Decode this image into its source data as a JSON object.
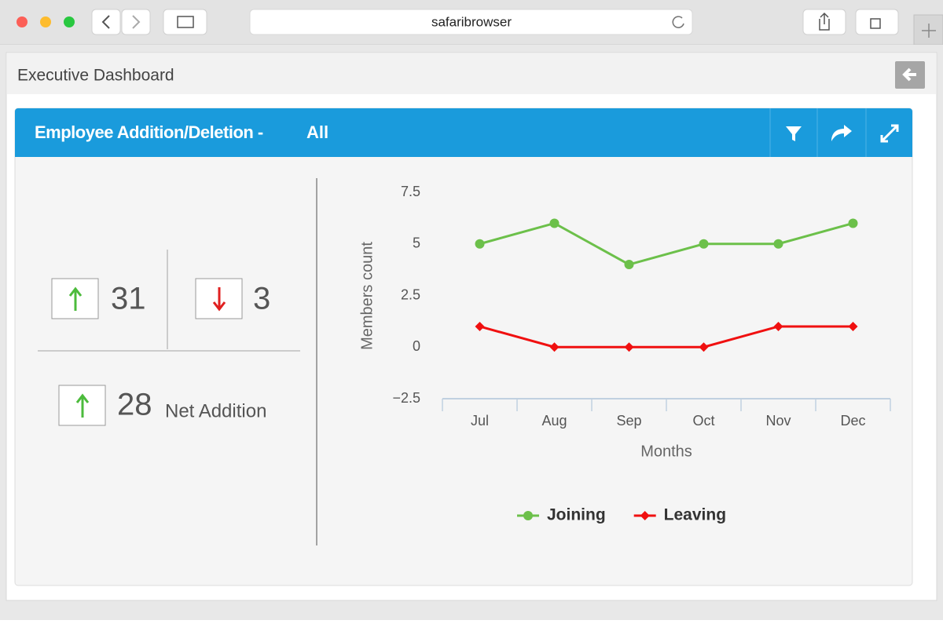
{
  "browser": {
    "address": "safaribrowser"
  },
  "header": {
    "title": "Executive Dashboard"
  },
  "panel": {
    "title": "Employee Addition/Deletion -",
    "filter": "All",
    "stats": {
      "added": 31,
      "removed": 3,
      "net": 28,
      "net_label": "Net Addition"
    }
  },
  "chart_data": {
    "type": "line",
    "x_label": "Months",
    "y_label": "Members count",
    "categories": [
      "Jul",
      "Aug",
      "Sep",
      "Oct",
      "Nov",
      "Dec"
    ],
    "series": [
      {
        "name": "Joining",
        "color": "#6cc04a",
        "marker": "circle",
        "values": [
          5,
          6,
          4,
          5,
          5,
          6
        ]
      },
      {
        "name": "Leaving",
        "color": "#f01010",
        "marker": "diamond",
        "values": [
          1,
          0,
          0,
          0,
          1,
          1
        ]
      }
    ],
    "ylim": [
      -2.5,
      7.5
    ],
    "yticks": [
      {
        "value": -2.5,
        "label": "−2.5"
      },
      0,
      2.5,
      5,
      7.5
    ],
    "grid": false
  }
}
